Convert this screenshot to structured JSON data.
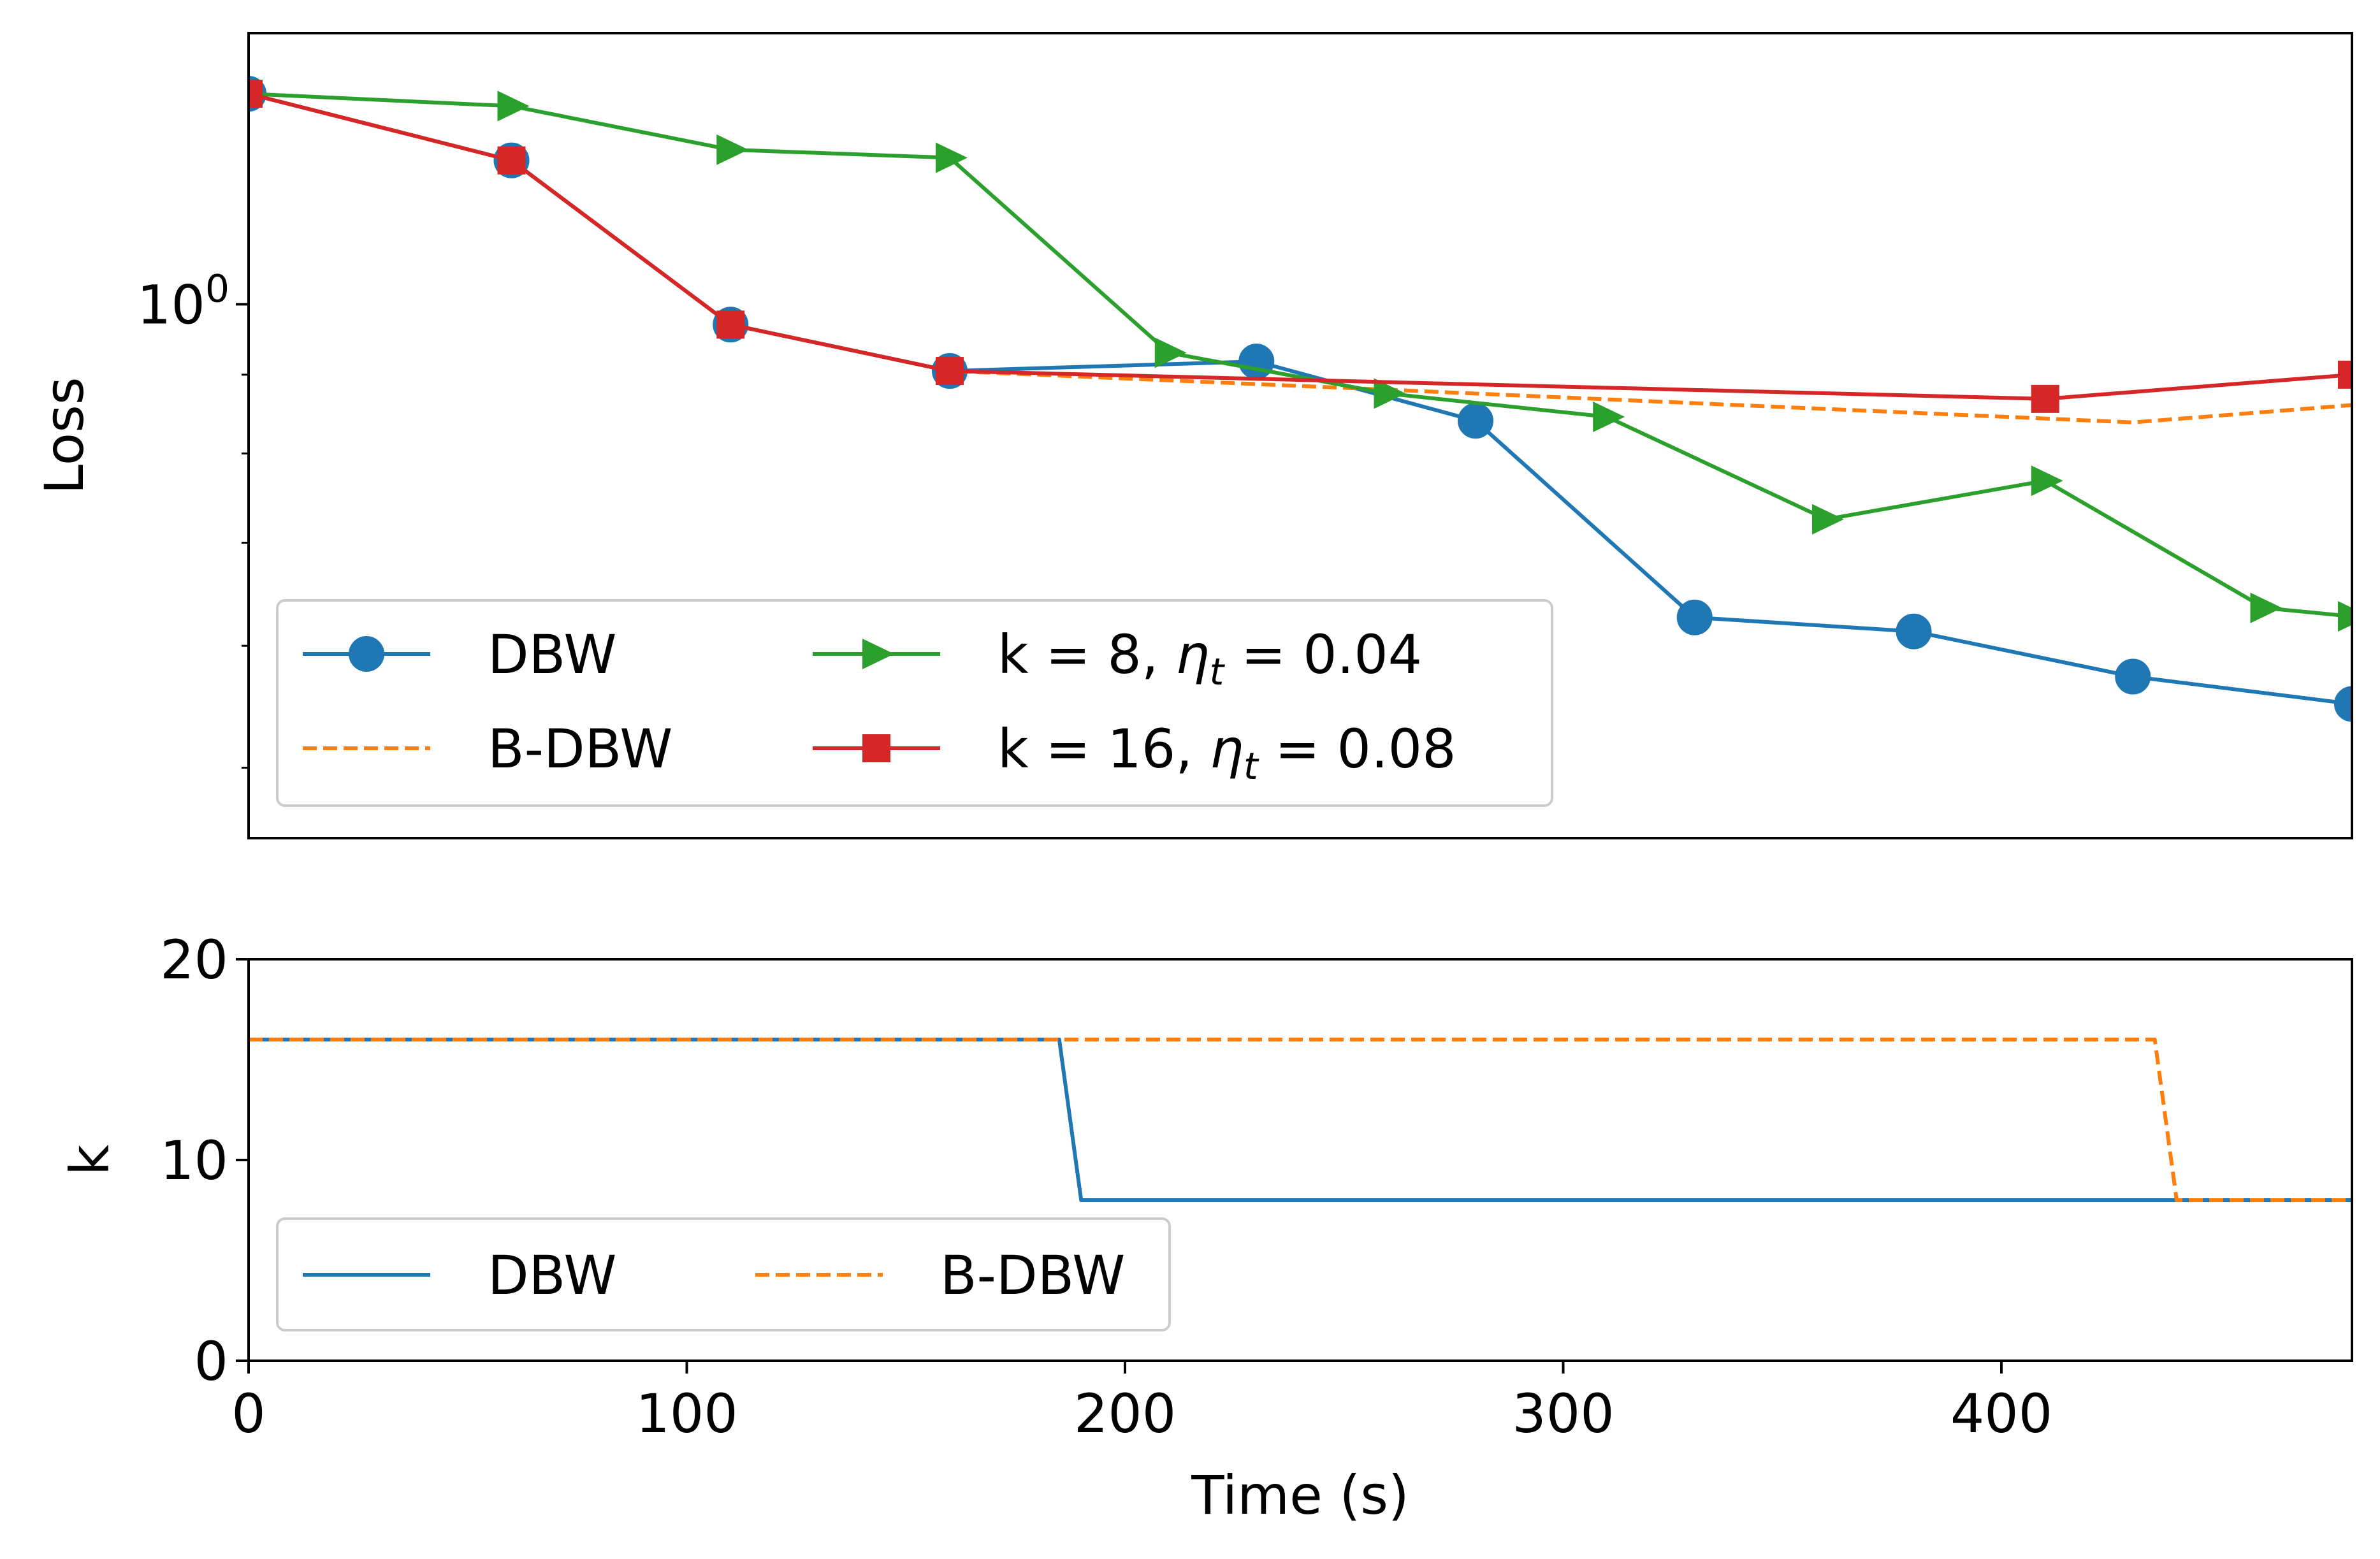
{
  "chart_data": [
    {
      "type": "line",
      "panel": "top",
      "ylabel": "Loss",
      "xlabel": "",
      "xlim": [
        0,
        480
      ],
      "ylim": [
        0.45,
        1.5
      ],
      "yscale": "log",
      "y_tick_label": "10⁰",
      "y_tick_parts": {
        "base": "10",
        "exponent": "0"
      },
      "y_tick_value": 1.0,
      "y_minor_ticks": [
        0.5,
        0.6,
        0.7,
        0.8,
        0.9
      ],
      "grid": false,
      "legend": {
        "placement": "lower-left",
        "columns": 2
      },
      "series": [
        {
          "name": "DBW",
          "color": "#1f77b4",
          "line": "solid",
          "marker": "circle",
          "points": [
            [
              0,
              1.37
            ],
            [
              60,
              1.24
            ],
            [
              110,
              0.97
            ],
            [
              160,
              0.905
            ],
            [
              230,
              0.918
            ],
            [
              280,
              0.84
            ],
            [
              330,
              0.626
            ],
            [
              380,
              0.613
            ],
            [
              430,
              0.573
            ],
            [
              480,
              0.55
            ]
          ]
        },
        {
          "name": "B-DBW",
          "color": "#ff7f0e",
          "line": "dashed",
          "marker": "none",
          "points": [
            [
              0,
              1.37
            ],
            [
              60,
              1.24
            ],
            [
              110,
              0.97
            ],
            [
              160,
              0.905
            ],
            [
              260,
              0.88
            ],
            [
              430,
              0.838
            ],
            [
              480,
              0.86
            ]
          ]
        },
        {
          "name": "k = 8, ηt = 0.04",
          "name_parts": {
            "prefix": "k = 8, ",
            "sym": "η",
            "sub": "t",
            "suffix": " = 0.04"
          },
          "color": "#2ca02c",
          "line": "solid",
          "marker": "triangle-right",
          "points": [
            [
              0,
              1.37
            ],
            [
              60,
              1.345
            ],
            [
              110,
              1.26
            ],
            [
              160,
              1.245
            ],
            [
              210,
              0.93
            ],
            [
              260,
              0.875
            ],
            [
              310,
              0.845
            ],
            [
              360,
              0.725
            ],
            [
              410,
              0.768
            ],
            [
              460,
              0.635
            ],
            [
              480,
              0.627
            ]
          ]
        },
        {
          "name": "k = 16, ηt = 0.08",
          "name_parts": {
            "prefix": "k = 16, ",
            "sym": "η",
            "sub": "t",
            "suffix": " = 0.08"
          },
          "color": "#d62728",
          "line": "solid",
          "marker": "square",
          "points": [
            [
              0,
              1.37
            ],
            [
              60,
              1.24
            ],
            [
              110,
              0.97
            ],
            [
              160,
              0.905
            ],
            [
              410,
              0.868
            ],
            [
              480,
              0.9
            ]
          ]
        }
      ]
    },
    {
      "type": "line",
      "panel": "bottom",
      "xlabel": "Time (s)",
      "ylabel": "k",
      "xlim": [
        0,
        480
      ],
      "ylim": [
        0,
        20
      ],
      "x_ticks": [
        0,
        100,
        200,
        300,
        400
      ],
      "y_ticks": [
        0,
        10,
        20
      ],
      "grid": false,
      "legend": {
        "placement": "lower-left",
        "columns": 2
      },
      "series": [
        {
          "name": "DBW",
          "color": "#1f77b4",
          "line": "solid",
          "points": [
            [
              0,
              16
            ],
            [
              185,
              16
            ],
            [
              190,
              8
            ],
            [
              480,
              8
            ]
          ]
        },
        {
          "name": "B-DBW",
          "color": "#ff7f0e",
          "line": "dashed",
          "points": [
            [
              0,
              16
            ],
            [
              435,
              16
            ],
            [
              440,
              8
            ],
            [
              480,
              8
            ]
          ]
        }
      ]
    }
  ]
}
